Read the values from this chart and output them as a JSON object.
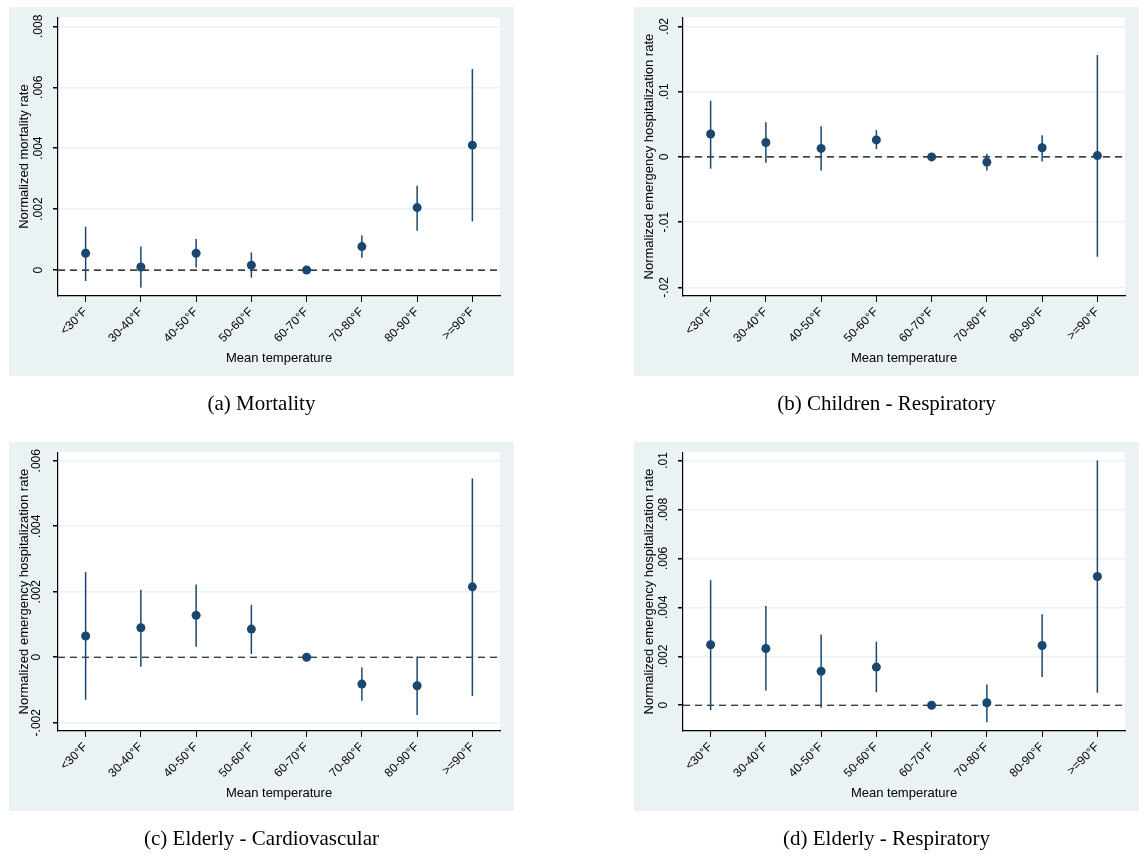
{
  "chart_data": [
    {
      "type": "scatter",
      "categories": [
        "<30°F",
        "30-40°F",
        "40-50°F",
        "50-60°F",
        "60-70°F",
        "70-80°F",
        "80-90°F",
        ">=90°F"
      ],
      "xlabel": "Mean temperature",
      "ylabel": "Normalized mortality rate",
      "annotations": [
        "(a) Mortality"
      ],
      "marker": "circle",
      "grid": "y",
      "series": [
        {
          "color": "#1a476f",
          "values": [
            0.00055,
            0.0001,
            0.00055,
            0.00016,
            0,
            0.00077,
            0.00205,
            0.0041
          ],
          "errors": [
            [
              -0.00036,
              0.00142
            ],
            [
              -0.00058,
              0.00077
            ],
            [
              8e-05,
              0.00102
            ],
            [
              -0.00025,
              0.00058
            ],
            null,
            [
              0.0004,
              0.00113
            ],
            [
              0.00129,
              0.00277
            ],
            [
              0.0016,
              0.0066
            ]
          ]
        }
      ],
      "ylim": [
        -0.00085,
        0.0083
      ],
      "yticks": [
        {
          "value": 0,
          "label": "0"
        },
        {
          "value": 0.002,
          "label": ".002"
        },
        {
          "value": 0.004,
          "label": ".004"
        },
        {
          "value": 0.006,
          "label": ".006"
        },
        {
          "value": 0.008,
          "label": ".008"
        }
      ],
      "ref_lines": [
        {
          "axis": "y",
          "value": 0,
          "line_style": "dashed",
          "color": "#000000"
        }
      ]
    },
    {
      "type": "scatter",
      "categories": [
        "<30°F",
        "30-40°F",
        "40-50°F",
        "50-60°F",
        "60-70°F",
        "70-80°F",
        "80-90°F",
        ">=90°F"
      ],
      "xlabel": "Mean temperature",
      "ylabel": "Normalized emergency hospitalization rate",
      "annotations": [
        "(b) Children - Respiratory"
      ],
      "marker": "circle",
      "grid": "y",
      "series": [
        {
          "color": "#1a476f",
          "values": [
            0.0035,
            0.0022,
            0.0013,
            0.0026,
            0,
            -0.0008,
            0.0014,
            0.0002
          ],
          "errors": [
            [
              -0.0018,
              0.0086
            ],
            [
              -0.0009,
              0.0053
            ],
            [
              -0.0021,
              0.0047
            ],
            [
              0.0012,
              0.0041
            ],
            null,
            [
              -0.0021,
              0.0005
            ],
            [
              -0.0007,
              0.0033
            ],
            [
              -0.0153,
              0.0156
            ]
          ]
        }
      ],
      "ylim": [
        -0.0213,
        0.0214
      ],
      "yticks": [
        {
          "value": -0.02,
          "label": "-.02"
        },
        {
          "value": -0.01,
          "label": "-.01"
        },
        {
          "value": 0,
          "label": "0"
        },
        {
          "value": 0.01,
          "label": ".01"
        },
        {
          "value": 0.02,
          "label": ".02"
        }
      ],
      "ref_lines": [
        {
          "axis": "y",
          "value": 0,
          "line_style": "dashed",
          "color": "#000000"
        }
      ]
    },
    {
      "type": "scatter",
      "categories": [
        "<30°F",
        "30-40°F",
        "40-50°F",
        "50-60°F",
        "60-70°F",
        "70-80°F",
        "80-90°F",
        ">=90°F"
      ],
      "xlabel": "Mean temperature",
      "ylabel": "Normalized emergency hospitalization rate",
      "annotations": [
        "(c) Elderly - Cardiovascular"
      ],
      "marker": "circle",
      "grid": "y",
      "series": [
        {
          "color": "#1a476f",
          "values": [
            0.00065,
            0.0009,
            0.00128,
            0.00086,
            0,
            -0.00082,
            -0.00087,
            0.00215
          ],
          "errors": [
            [
              -0.0013,
              0.0026
            ],
            [
              -0.00029,
              0.00206
            ],
            [
              0.00032,
              0.00222
            ],
            [
              0.0001,
              0.0016
            ],
            null,
            [
              -0.00133,
              -0.00031
            ],
            [
              -0.00176,
              2e-05
            ],
            [
              -0.00118,
              0.00546
            ]
          ]
        }
      ],
      "ylim": [
        -0.00225,
        0.00626
      ],
      "yticks": [
        {
          "value": -0.002,
          "label": "-.002"
        },
        {
          "value": 0,
          "label": "0"
        },
        {
          "value": 0.002,
          "label": ".002"
        },
        {
          "value": 0.004,
          "label": ".004"
        },
        {
          "value": 0.006,
          "label": ".006"
        }
      ],
      "ref_lines": [
        {
          "axis": "y",
          "value": 0,
          "line_style": "dashed",
          "color": "#000000"
        }
      ]
    },
    {
      "type": "scatter",
      "categories": [
        "<30°F",
        "30-40°F",
        "40-50°F",
        "50-60°F",
        "60-70°F",
        "70-80°F",
        "80-90°F",
        ">=90°F"
      ],
      "xlabel": "Mean temperature",
      "ylabel": "Normalized emergency hospitalization rate",
      "annotations": [
        "(d) Elderly - Respiratory"
      ],
      "marker": "circle",
      "grid": "y",
      "series": [
        {
          "color": "#1a476f",
          "values": [
            0.00247,
            0.00232,
            0.00139,
            0.00156,
            0,
            0.0001,
            0.00244,
            0.00526
          ],
          "errors": [
            [
              -0.0002,
              0.00511
            ],
            [
              0.0006,
              0.00406
            ],
            [
              -0.0001,
              0.00289
            ],
            [
              0.00053,
              0.0026
            ],
            null,
            [
              -0.0007,
              0.00085
            ],
            [
              0.00115,
              0.00372
            ],
            [
              0.00051,
              0.01
            ]
          ]
        }
      ],
      "ylim": [
        -0.00105,
        0.01034
      ],
      "yticks": [
        {
          "value": 0,
          "label": "0"
        },
        {
          "value": 0.002,
          "label": ".002"
        },
        {
          "value": 0.004,
          "label": ".004"
        },
        {
          "value": 0.006,
          "label": ".006"
        },
        {
          "value": 0.008,
          "label": ".008"
        },
        {
          "value": 0.01,
          "label": ".01"
        }
      ],
      "ref_lines": [
        {
          "axis": "y",
          "value": 0,
          "line_style": "dashed",
          "color": "#000000"
        }
      ]
    }
  ]
}
